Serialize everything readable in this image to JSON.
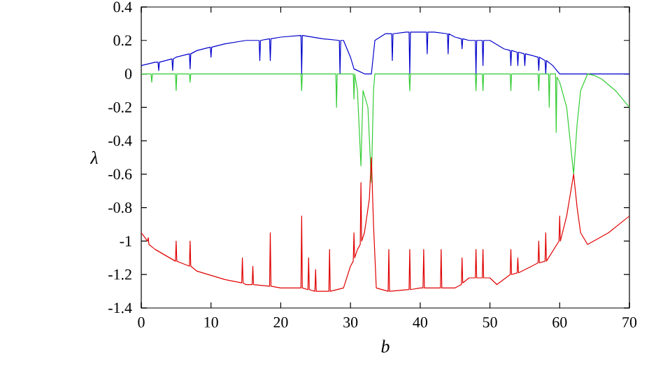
{
  "chart_data": {
    "type": "line",
    "xlabel": "b",
    "ylabel": "λ",
    "xlim": [
      0,
      70
    ],
    "ylim": [
      -1.4,
      0.4
    ],
    "xticks": [
      0,
      10,
      20,
      30,
      40,
      50,
      60,
      70
    ],
    "yticks": [
      -1.4,
      -1.2,
      -1,
      -0.8,
      -0.6,
      -0.4,
      -0.2,
      0,
      0.2,
      0.4
    ],
    "marker": "none",
    "line_style": "solid",
    "series": [
      {
        "color": "#0000cc",
        "x": [
          0,
          2,
          2.4,
          2.5,
          2.6,
          4.4,
          4.5,
          4.6,
          5,
          6.9,
          7,
          7.1,
          8,
          9.9,
          10,
          10.1,
          12,
          15,
          16.9,
          17,
          17.1,
          18.4,
          18.5,
          18.6,
          20,
          22.9,
          23,
          23.1,
          26,
          28.4,
          28.5,
          28.6,
          29,
          30,
          30.5,
          32,
          33,
          33.5,
          35,
          35.9,
          36,
          36.1,
          38,
          38.4,
          38.5,
          38.6,
          40.9,
          41,
          41.1,
          42,
          43.9,
          44,
          44.1,
          45,
          45.9,
          46,
          46.1,
          47,
          47.9,
          48,
          48.1,
          48.9,
          49,
          49.1,
          50,
          52,
          52.9,
          53,
          53.1,
          53.9,
          54,
          54.1,
          54.9,
          55,
          55.1,
          56.9,
          57,
          57.1,
          57.9,
          58,
          58.1,
          59,
          60,
          70
        ],
        "values": [
          0.05,
          0.07,
          0.07,
          0.02,
          0.07,
          0.09,
          0.02,
          0.09,
          0.1,
          0.12,
          0.03,
          0.12,
          0.14,
          0.16,
          0.1,
          0.16,
          0.18,
          0.2,
          0.2,
          0.08,
          0.2,
          0.21,
          0.08,
          0.21,
          0.22,
          0.23,
          0.0,
          0.23,
          0.21,
          0.2,
          0.0,
          0.2,
          0.2,
          0.1,
          0.03,
          0.0,
          0.0,
          0.2,
          0.24,
          0.24,
          0.08,
          0.24,
          0.25,
          0.25,
          0.0,
          0.25,
          0.25,
          0.12,
          0.25,
          0.25,
          0.24,
          0.12,
          0.24,
          0.22,
          0.21,
          0.15,
          0.21,
          0.2,
          0.2,
          0.0,
          0.2,
          0.2,
          0.05,
          0.2,
          0.2,
          0.15,
          0.14,
          0.05,
          0.14,
          0.13,
          0.05,
          0.13,
          0.12,
          0.05,
          0.12,
          0.1,
          0.02,
          0.1,
          0.08,
          0.0,
          0.08,
          0.05,
          0.0,
          0.0
        ]
      },
      {
        "color": "#33cc33",
        "x": [
          0,
          1.4,
          1.5,
          1.6,
          4.9,
          5,
          5.1,
          6.9,
          7,
          7.1,
          22.9,
          23,
          23.1,
          27.9,
          28,
          28.1,
          30.4,
          30.5,
          30.6,
          31,
          31.5,
          31.8,
          32.5,
          33,
          33.3,
          33.5,
          38.4,
          38.5,
          38.6,
          47.9,
          48,
          48.1,
          48.9,
          49,
          49.1,
          52.9,
          53,
          53.1,
          56.9,
          57,
          57.1,
          58.4,
          58.5,
          58.6,
          59.4,
          59.5,
          59.6,
          60,
          61,
          61.5,
          62,
          62.5,
          63,
          64,
          65,
          66,
          68,
          70
        ],
        "values": [
          0,
          0,
          -0.05,
          0,
          0,
          -0.1,
          0,
          0,
          -0.05,
          0,
          0,
          -0.1,
          0,
          0,
          -0.2,
          0,
          0,
          -0.15,
          0,
          -0.1,
          -0.55,
          -0.1,
          -0.2,
          -0.65,
          -0.1,
          0,
          0,
          -0.1,
          0,
          0,
          -0.1,
          0,
          0,
          -0.1,
          0,
          0,
          -0.1,
          0,
          0,
          -0.1,
          0,
          0,
          -0.2,
          0,
          0,
          -0.35,
          -0.02,
          -0.05,
          -0.2,
          -0.4,
          -0.6,
          -0.3,
          -0.1,
          0,
          -0.01,
          -0.03,
          -0.1,
          -0.2
        ]
      },
      {
        "color": "#e00000",
        "x": [
          0,
          0.9,
          1,
          1.1,
          2,
          4.9,
          5,
          5.1,
          6.9,
          7,
          7.1,
          8,
          12,
          14.4,
          14.5,
          14.6,
          15,
          15.9,
          16,
          16.1,
          18.4,
          18.5,
          18.6,
          20,
          22.9,
          23,
          23.1,
          23.9,
          24,
          24.1,
          24.9,
          25,
          25.1,
          26.9,
          27,
          27.1,
          29,
          30,
          30.4,
          30.5,
          30.6,
          31,
          31.4,
          31.5,
          31.6,
          32,
          32.7,
          33,
          33.3,
          33.7,
          35.4,
          35.5,
          35.6,
          38.4,
          38.5,
          38.6,
          40,
          40.4,
          40.5,
          40.6,
          42.9,
          43,
          43.1,
          45,
          45.9,
          46,
          46.1,
          47,
          47.9,
          48,
          48.1,
          48.9,
          49,
          49.1,
          50,
          51,
          52.9,
          53,
          53.1,
          53.9,
          54,
          54.1,
          56,
          56.9,
          57,
          57.1,
          57.9,
          58,
          58.1,
          59.9,
          60,
          60.1,
          61,
          62,
          62.5,
          63,
          64,
          67,
          70
        ],
        "values": [
          -0.95,
          -1.0,
          -0.98,
          -1.02,
          -1.05,
          -1.12,
          -1.0,
          -1.12,
          -1.15,
          -1.0,
          -1.15,
          -1.18,
          -1.23,
          -1.25,
          -1.1,
          -1.25,
          -1.26,
          -1.26,
          -1.15,
          -1.26,
          -1.27,
          -0.95,
          -1.27,
          -1.28,
          -1.28,
          -0.85,
          -1.28,
          -1.29,
          -1.1,
          -1.29,
          -1.3,
          -1.17,
          -1.3,
          -1.3,
          -1.05,
          -1.3,
          -1.28,
          -1.15,
          -1.12,
          -0.95,
          -1.1,
          -1.05,
          -1.02,
          -0.65,
          -1.0,
          -0.95,
          -0.75,
          -0.5,
          -0.9,
          -1.28,
          -1.3,
          -1.05,
          -1.3,
          -1.29,
          -1.05,
          -1.29,
          -1.28,
          -1.28,
          -1.05,
          -1.28,
          -1.28,
          -1.05,
          -1.28,
          -1.28,
          -1.26,
          -1.1,
          -1.25,
          -1.22,
          -1.22,
          -1.05,
          -1.22,
          -1.22,
          -1.05,
          -1.22,
          -1.22,
          -1.26,
          -1.2,
          -1.05,
          -1.2,
          -1.19,
          -1.1,
          -1.19,
          -1.15,
          -1.13,
          -1.0,
          -1.13,
          -1.12,
          -0.95,
          -1.12,
          -1.0,
          -0.85,
          -1.0,
          -0.85,
          -0.6,
          -0.8,
          -0.95,
          -1.02,
          -0.95,
          -0.85
        ]
      }
    ]
  }
}
